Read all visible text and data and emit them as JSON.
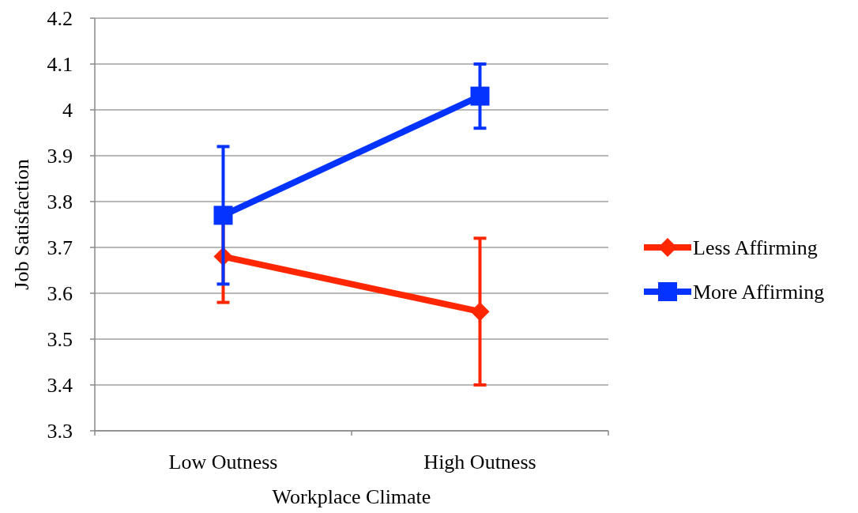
{
  "chart_data": {
    "type": "line",
    "xlabel": "Workplace Climate",
    "ylabel": "Job Satisfaction",
    "categories": [
      "Low Outness",
      "High Outness"
    ],
    "series": [
      {
        "name": "Less Affirming",
        "color": "#ff2600",
        "values": [
          3.68,
          3.56
        ],
        "errors": [
          0.1,
          0.16
        ],
        "marker": "diamond"
      },
      {
        "name": "More Affirming",
        "color": "#0433ff",
        "values": [
          3.77,
          4.03
        ],
        "errors": [
          0.15,
          0.07
        ],
        "marker": "square"
      }
    ],
    "ylim": [
      3.3,
      4.2
    ],
    "yticks": [
      3.3,
      3.4,
      3.5,
      3.6,
      3.7,
      3.8,
      3.9,
      4,
      4.1,
      4.2
    ],
    "grid": "y",
    "legend": "right",
    "line_style": "solid"
  }
}
